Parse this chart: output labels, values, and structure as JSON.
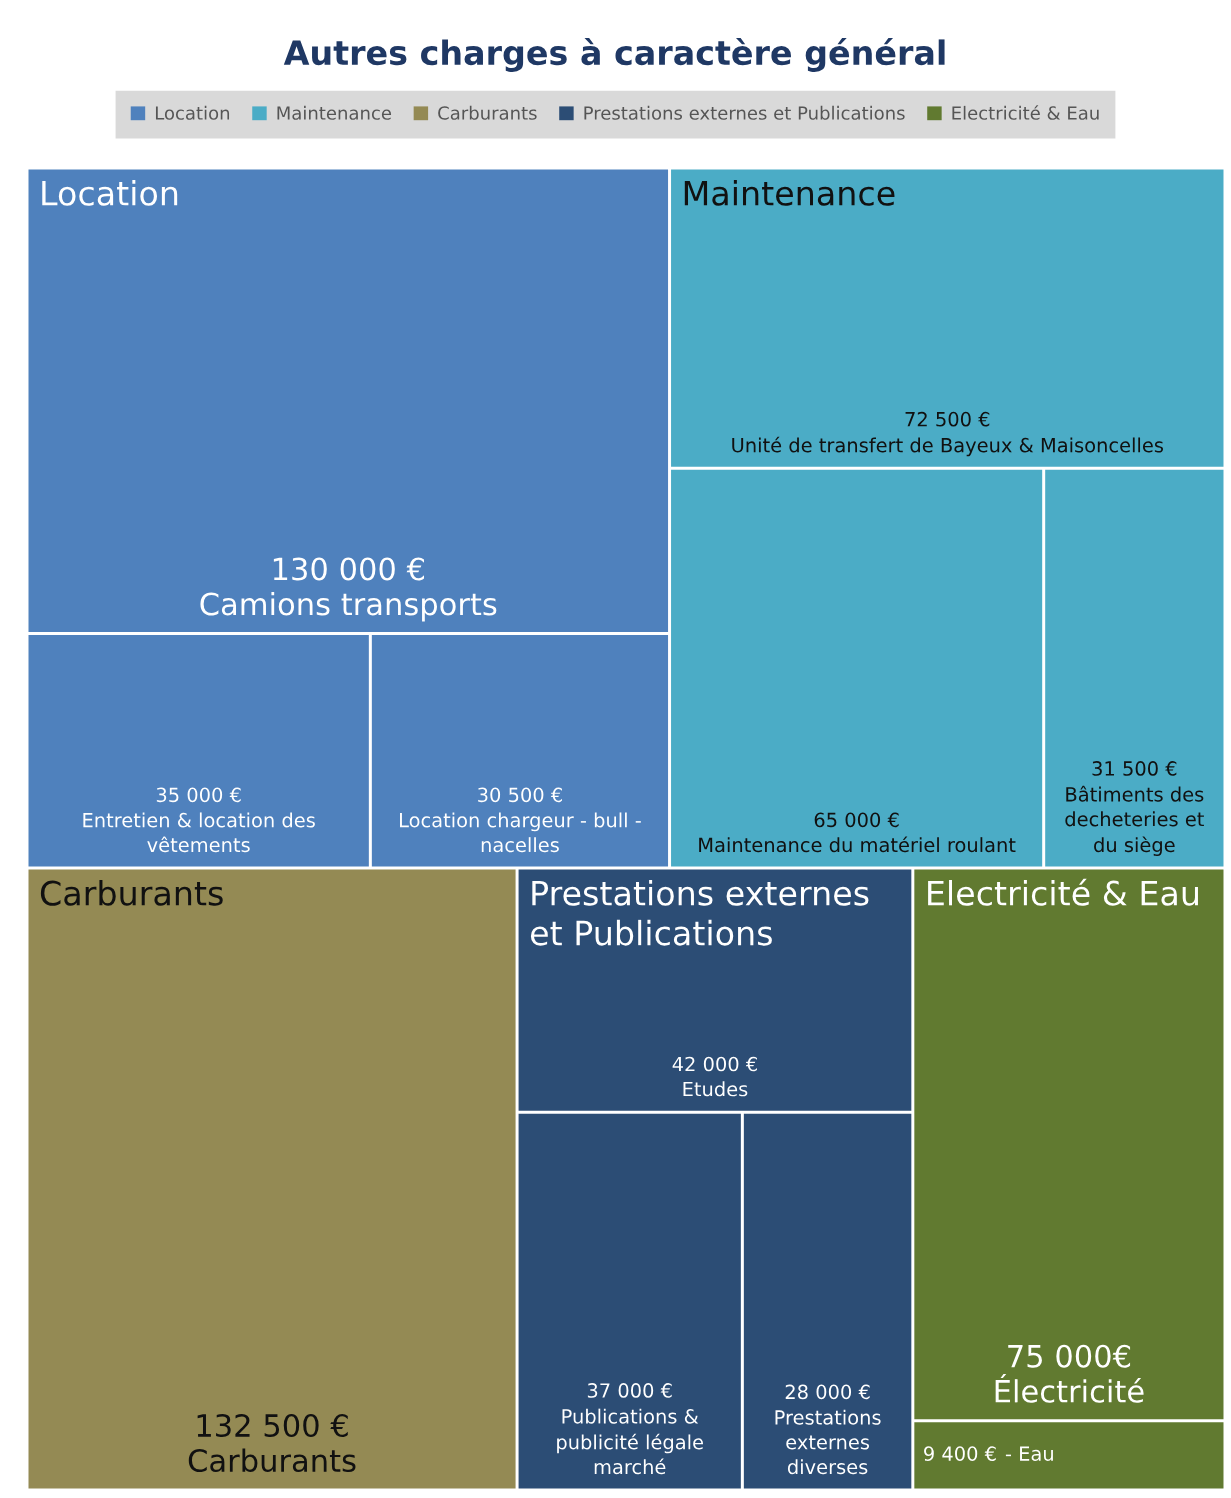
{
  "chart_data": {
    "type": "other",
    "title": "Autres charges à caractère général",
    "legend": "top",
    "categories": [
      "Camions transports",
      "Entretien & location des vêtements",
      "Location chargeur - bull - nacelles",
      "Unité de transfert de Bayeux & Maisoncelles",
      "Maintenance du matériel roulant",
      "Bâtiments des decheteries et du siège",
      "Carburants",
      "Etudes",
      "Publications & publicité légale marché",
      "Prestations externes diverses",
      "Électricité",
      "- Eau"
    ],
    "series": [
      {
        "name": "Location",
        "color": "#4f81bd",
        "values": [
          130000,
          35000,
          30500,
          null,
          null,
          null,
          null,
          null,
          null,
          null,
          null,
          null
        ],
        "value_labels": [
          "130 000 €",
          "35 000 €",
          "30 500 €",
          null,
          null,
          null,
          null,
          null,
          null,
          null,
          null,
          null
        ]
      },
      {
        "name": "Maintenance",
        "color": "#4bacc6",
        "values": [
          null,
          null,
          null,
          72500,
          65000,
          31500,
          null,
          null,
          null,
          null,
          null,
          null
        ],
        "value_labels": [
          null,
          null,
          null,
          "72 500 €",
          "65 000 €",
          "31 500 €",
          null,
          null,
          null,
          null,
          null,
          null
        ]
      },
      {
        "name": "Carburants",
        "color": "#948a54",
        "values": [
          null,
          null,
          null,
          null,
          null,
          null,
          132500,
          null,
          null,
          null,
          null,
          null
        ],
        "value_labels": [
          null,
          null,
          null,
          null,
          null,
          null,
          "132 500 €",
          null,
          null,
          null,
          null,
          null
        ]
      },
      {
        "name": "Prestations externes et Publications",
        "color": "#2c4d75",
        "values": [
          null,
          null,
          null,
          null,
          null,
          null,
          null,
          42000,
          37000,
          28000,
          null,
          null
        ],
        "value_labels": [
          null,
          null,
          null,
          null,
          null,
          null,
          null,
          "42 000 €",
          "37 000 €",
          "28 000 €",
          null,
          null
        ]
      },
      {
        "name": "Electricité & Eau",
        "color": "#617a30",
        "values": [
          null,
          null,
          null,
          null,
          null,
          null,
          null,
          null,
          null,
          null,
          75000,
          9400
        ],
        "value_labels": [
          null,
          null,
          null,
          null,
          null,
          null,
          null,
          null,
          null,
          null,
          "75 000€",
          "9 400 €"
        ]
      }
    ]
  }
}
